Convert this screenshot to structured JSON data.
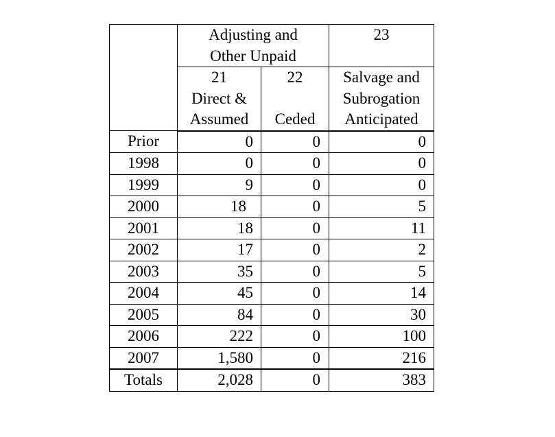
{
  "header": {
    "group_title_line1": "Adjusting and",
    "group_title_line2": "Other Unpaid",
    "col23_number": "23",
    "col21_number": "21",
    "col21_line1": "Direct &",
    "col21_line2": "Assumed",
    "col22_number": "22",
    "col22_label": "Ceded",
    "col23_line1": "Salvage and",
    "col23_line2": "Subrogation",
    "col23_line3": "Anticipated"
  },
  "rows": [
    {
      "label": "Prior",
      "direct_assumed": "0",
      "ceded": "0",
      "salvage": "0"
    },
    {
      "label": "1998",
      "direct_assumed": "0",
      "ceded": "0",
      "salvage": "0"
    },
    {
      "label": "1999",
      "direct_assumed": "9",
      "ceded": "0",
      "salvage": "0"
    },
    {
      "label": "2000",
      "direct_assumed": "18",
      "ceded": "0",
      "salvage": "5"
    },
    {
      "label": "2001",
      "direct_assumed": "18",
      "ceded": "0",
      "salvage": "11"
    },
    {
      "label": "2002",
      "direct_assumed": "17",
      "ceded": "0",
      "salvage": "2"
    },
    {
      "label": "2003",
      "direct_assumed": "35",
      "ceded": "0",
      "salvage": "5"
    },
    {
      "label": "2004",
      "direct_assumed": "45",
      "ceded": "0",
      "salvage": "14"
    },
    {
      "label": "2005",
      "direct_assumed": "84",
      "ceded": "0",
      "salvage": "30"
    },
    {
      "label": "2006",
      "direct_assumed": "222",
      "ceded": "0",
      "salvage": "100"
    },
    {
      "label": "2007",
      "direct_assumed": "1,580",
      "ceded": "0",
      "salvage": "216"
    }
  ],
  "totals": {
    "label": "Totals",
    "direct_assumed": "2,028",
    "ceded": "0",
    "salvage": "383"
  }
}
